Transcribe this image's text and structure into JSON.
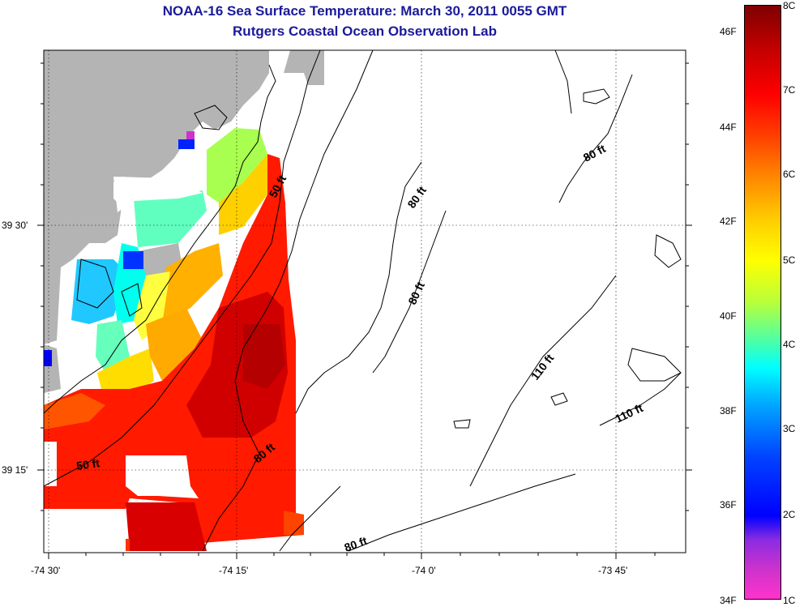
{
  "title": "NOAA-16 Sea Surface Temperature:  March 30, 2011 0055 GMT",
  "subtitle": "Rutgers Coastal Ocean Observation Lab",
  "map": {
    "lon_ticks": [
      "-74 30'",
      "-74 15'",
      "-74 0'",
      "-73 45'"
    ],
    "lat_ticks": [
      "39 30'",
      "39 15'"
    ],
    "contour_labels": [
      "50 ft",
      "80 ft",
      "80 ft",
      "80 ft",
      "80 ft",
      "110 ft",
      "110 ft",
      "50 ft",
      "80 ft"
    ]
  },
  "colorbar": {
    "celsius": [
      "8C",
      "7C",
      "6C",
      "5C",
      "4C",
      "3C",
      "2C",
      "1C"
    ],
    "fahrenheit": [
      "46F",
      "44F",
      "42F",
      "40F",
      "38F",
      "36F",
      "34F"
    ]
  },
  "colors": {
    "land": "#b4b4b4",
    "title": "#1a1a9a"
  }
}
